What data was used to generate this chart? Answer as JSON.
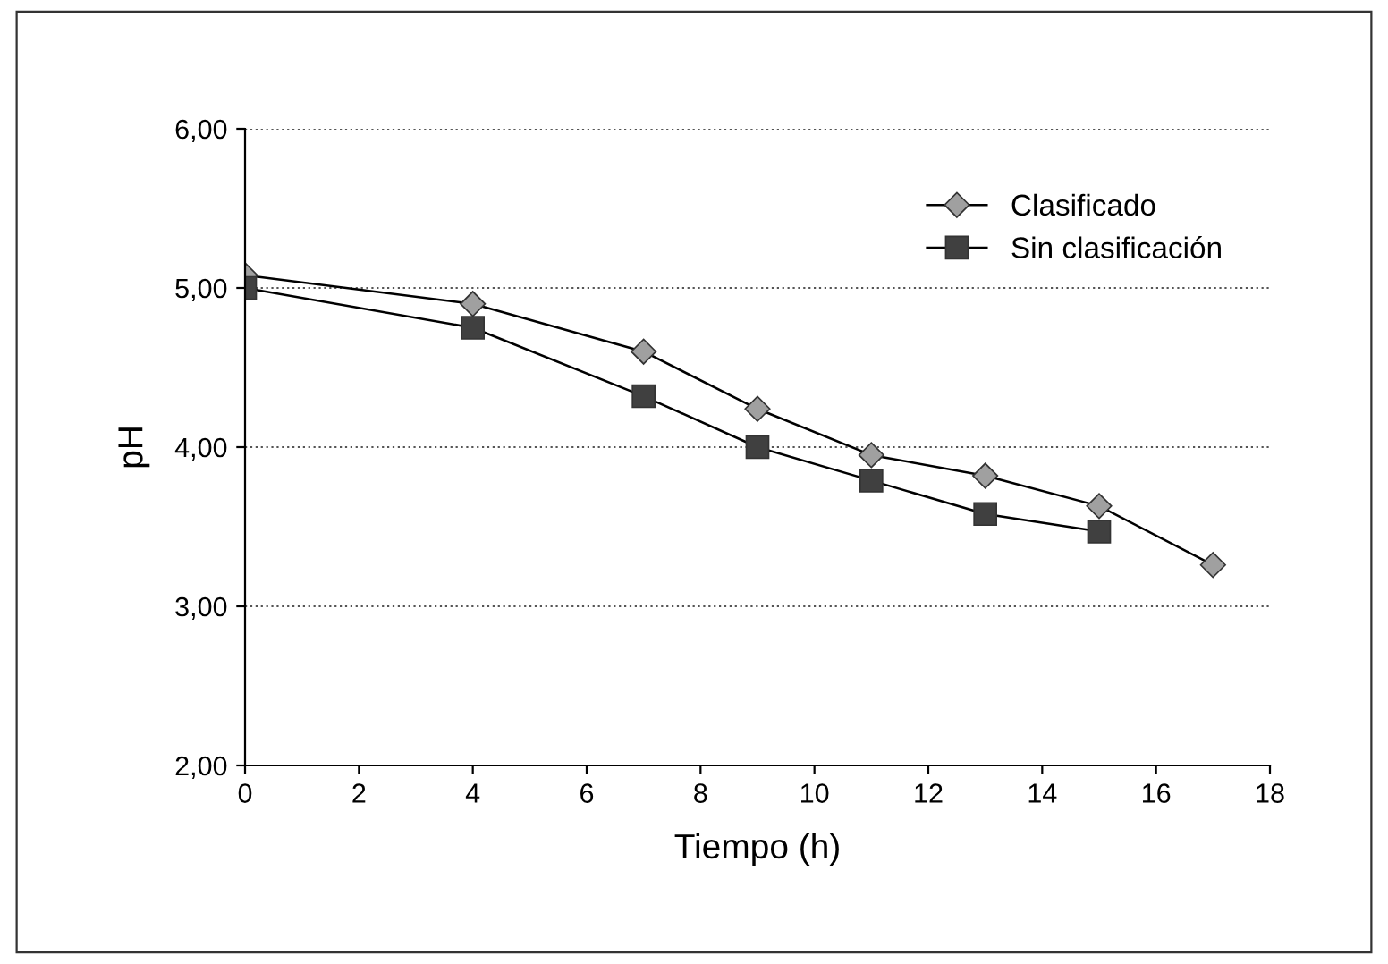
{
  "chart_data": {
    "type": "line",
    "xlabel": "Tiempo (h)",
    "ylabel": "pH",
    "xlim": [
      0,
      18
    ],
    "xticks": [
      0,
      2,
      4,
      6,
      8,
      10,
      12,
      14,
      16,
      18
    ],
    "ylim": [
      2,
      6
    ],
    "yticks": [
      {
        "value": 2,
        "label": "2,00"
      },
      {
        "value": 3,
        "label": "3,00"
      },
      {
        "value": 4,
        "label": "4,00"
      },
      {
        "value": 5,
        "label": "5,00"
      },
      {
        "value": 6,
        "label": "6,00"
      }
    ],
    "grid": "y",
    "legend": "top right",
    "line_style": "solid",
    "series": [
      {
        "name": "Clasificado",
        "color": "#a0a0a0",
        "marker": "diamond",
        "x": [
          0,
          4,
          7,
          9,
          11,
          13,
          15,
          17
        ],
        "values": [
          5.08,
          4.9,
          4.6,
          4.24,
          3.95,
          3.82,
          3.63,
          3.26
        ]
      },
      {
        "name": "Sin clasificación",
        "color": "#404040",
        "marker": "square",
        "x": [
          0,
          4,
          7,
          9,
          11,
          13,
          15
        ],
        "values": [
          5.0,
          4.75,
          4.32,
          4.0,
          3.79,
          3.58,
          3.47
        ]
      }
    ]
  }
}
